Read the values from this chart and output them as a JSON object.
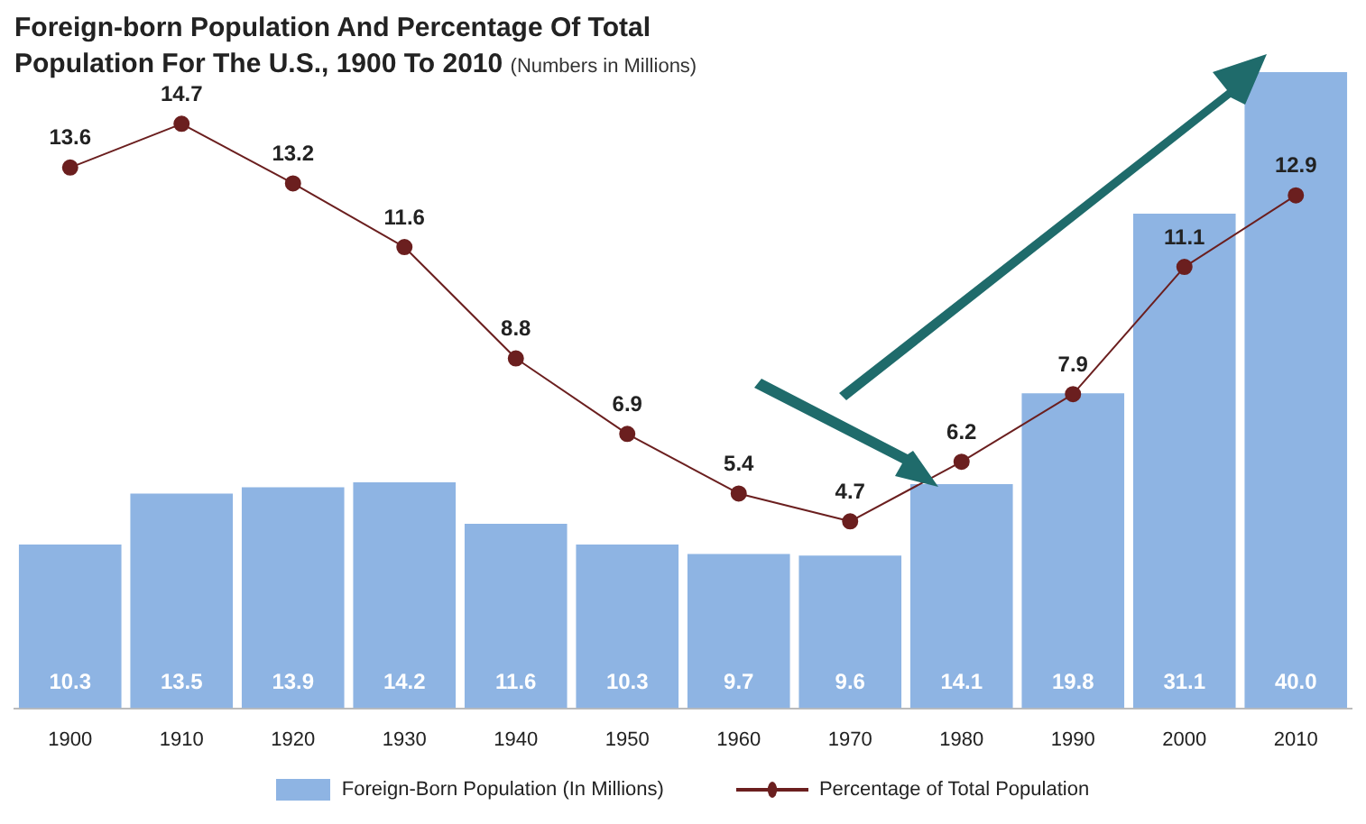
{
  "chart_data": {
    "type": "bar",
    "title": "Foreign-born Population And Percentage Of Total Population For The U.S., 1900 To 2010",
    "subtitle": "(Numbers in Millions)",
    "categories": [
      "1900",
      "1910",
      "1920",
      "1930",
      "1940",
      "1950",
      "1960",
      "1970",
      "1980",
      "1990",
      "2000",
      "2010"
    ],
    "series": [
      {
        "name": "Foreign-Born Population (In Millions)",
        "color": "#8eb4e3",
        "values": [
          10.3,
          13.5,
          13.9,
          14.2,
          11.6,
          10.3,
          9.7,
          9.6,
          14.1,
          19.8,
          31.1,
          40
        ],
        "value_labels": [
          "10.3",
          "13.5",
          "13.9",
          "14.2",
          "11.6",
          "10.3",
          "9.7",
          "9.6",
          "14.1",
          "19.8",
          "31.1",
          "40.0"
        ]
      },
      {
        "name": "Percentage of Total Population",
        "type": "line",
        "axis": "y2",
        "color": "#6b1f1f",
        "values": [
          13.6,
          14.7,
          13.2,
          11.6,
          8.8,
          6.9,
          5.4,
          4.7,
          6.2,
          7.9,
          11.1,
          12.9
        ],
        "value_labels": [
          "13.6",
          "14.7",
          "13.2",
          "11.6",
          "8.8",
          "6.9",
          "5.4",
          "4.7",
          "6.2",
          "7.9",
          "11.1",
          "12.9"
        ]
      }
    ],
    "legend": "bottom",
    "marker": "circle",
    "line_style": "solid",
    "tick_labels": "x"
  }
}
